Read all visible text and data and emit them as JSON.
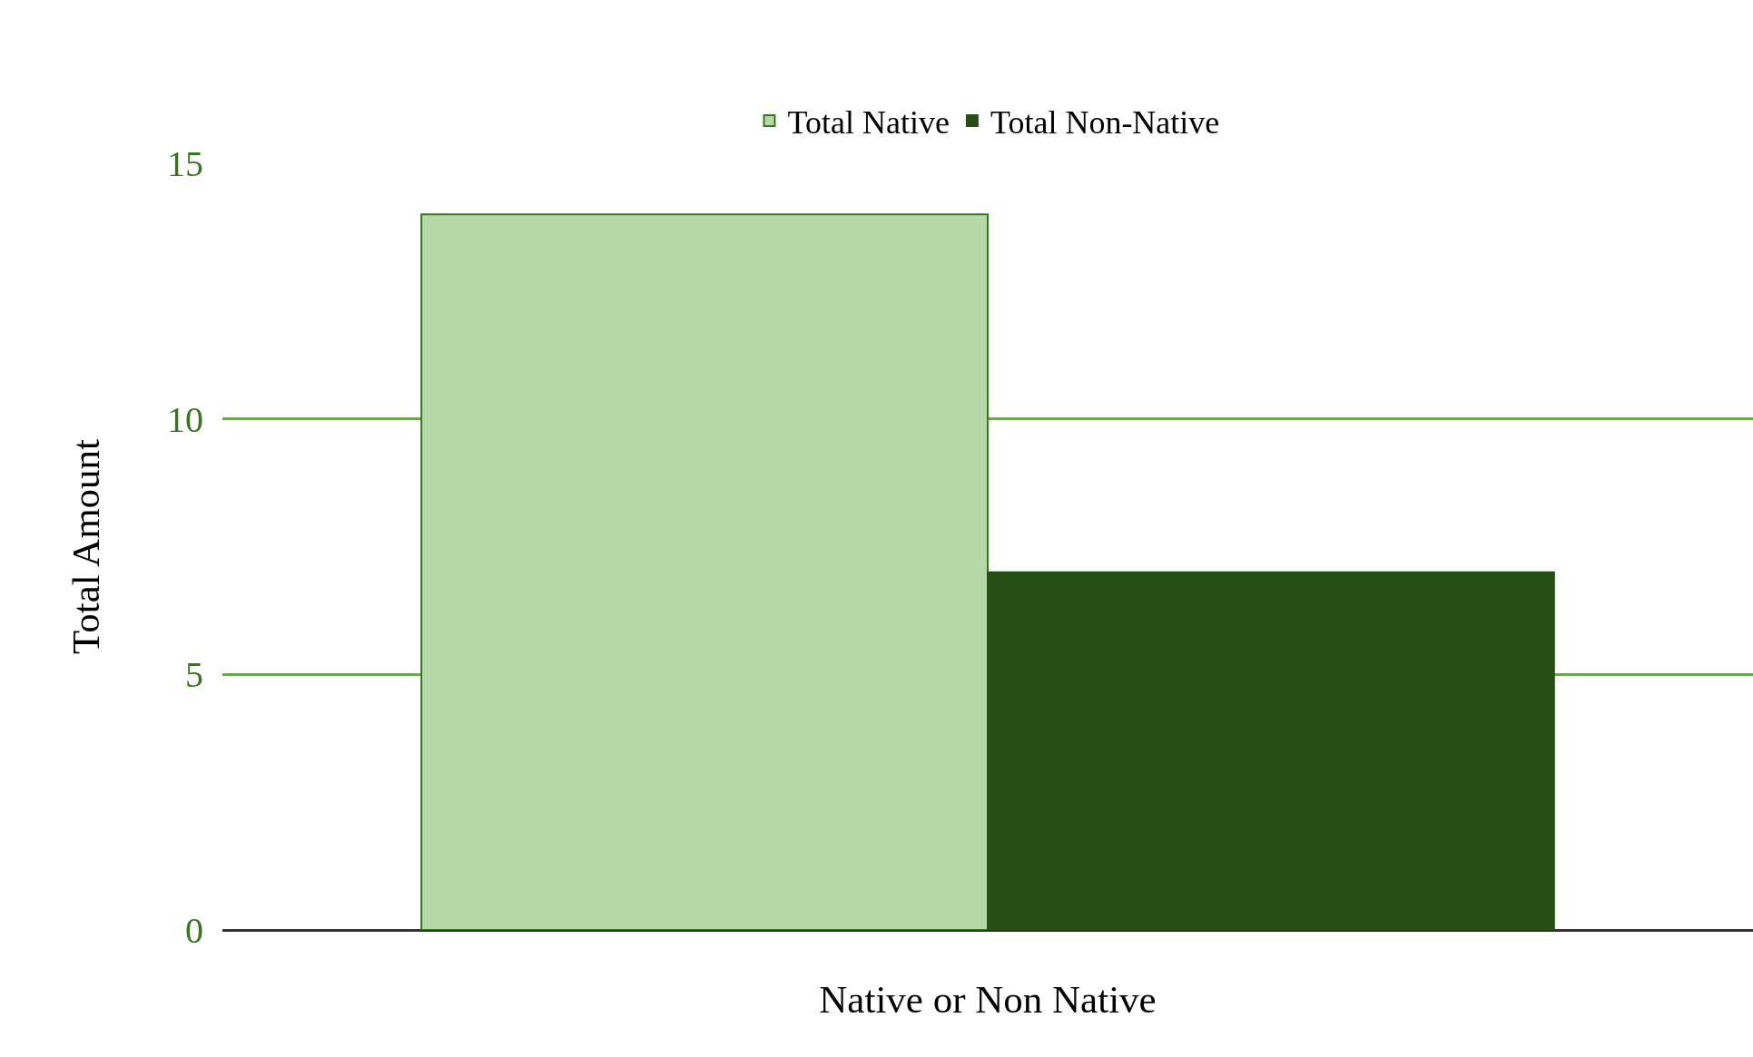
{
  "chart_data": {
    "type": "bar",
    "xlabel": "Native or Non Native",
    "ylabel": "Total Amount",
    "categories": [
      null
    ],
    "series": [
      {
        "name": "Total Native",
        "color": "#b6d7a8",
        "values": [
          14
        ]
      },
      {
        "name": "Total Non-Native",
        "color": "#274e13",
        "values": [
          7
        ]
      }
    ],
    "ylim": [
      0,
      15
    ],
    "yticks": [
      0,
      5,
      10,
      15
    ],
    "grid": "y",
    "legend": "top"
  }
}
